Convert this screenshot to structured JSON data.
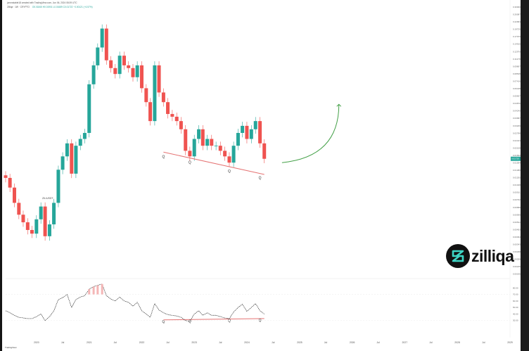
{
  "header": {
    "publisher": "jonnnstable18 created with TradingView.com, Jun 06, 2024 08:39 UTC",
    "symbol": "Zilliqa · 1W · CRYPTO",
    "ohlc": "O0.01845 H0.01901 L0.01689 C0.01722 −0.00121 (−6.57%)"
  },
  "logo": {
    "text": "zilliqa",
    "icon": "zilliqa-logo-mark"
  },
  "footer": {
    "brand": "TradingView"
  },
  "annotations": {
    "split_label": "ZIL/USDT"
  },
  "colors": {
    "up": "#26a69a",
    "down": "#ef5350",
    "trendline": "#e57373",
    "projection": "#43a047",
    "rsi_line": "#333333",
    "price_badge": "#26a69a"
  },
  "chart_data": [
    {
      "type": "candlestick",
      "title": "",
      "xlabel": "",
      "ylabel": "",
      "x_ticks": [
        "2020",
        "Jul",
        "2021",
        "Jul",
        "2022",
        "Jul",
        "2023",
        "Jul",
        "2024",
        "Jul",
        "2025",
        "Jul",
        "2026",
        "Jul",
        "2027",
        "Jul",
        "2028",
        "Jul",
        "2029"
      ],
      "ylim": [
        0.0019,
        0.3
      ],
      "y_scale": "log",
      "current_price": 0.0172,
      "x": [
        "2019-06",
        "2019-07",
        "2019-08",
        "2019-09",
        "2019-10",
        "2019-11",
        "2019-12",
        "2020-01",
        "2020-02",
        "2020-03",
        "2020-04",
        "2020-05",
        "2020-06",
        "2020-07",
        "2020-08",
        "2020-09",
        "2020-10",
        "2020-11",
        "2020-12",
        "2021-01",
        "2021-02",
        "2021-03",
        "2021-04",
        "2021-05",
        "2021-06",
        "2021-07",
        "2021-08",
        "2021-09",
        "2021-10",
        "2021-11",
        "2021-12",
        "2022-01",
        "2022-02",
        "2022-03",
        "2022-04",
        "2022-05",
        "2022-06",
        "2022-07",
        "2022-08",
        "2022-09",
        "2022-10",
        "2022-11",
        "2022-12",
        "2023-01",
        "2023-02",
        "2023-03",
        "2023-04",
        "2023-05",
        "2023-06",
        "2023-07",
        "2023-08",
        "2023-09",
        "2023-10",
        "2023-11",
        "2023-12",
        "2024-01",
        "2024-02",
        "2024-03",
        "2024-04",
        "2024-05"
      ],
      "close": [
        0.012,
        0.01,
        0.0075,
        0.006,
        0.0052,
        0.0045,
        0.0042,
        0.0055,
        0.007,
        0.004,
        0.005,
        0.0075,
        0.014,
        0.018,
        0.023,
        0.013,
        0.022,
        0.025,
        0.028,
        0.07,
        0.1,
        0.14,
        0.2,
        0.11,
        0.095,
        0.085,
        0.12,
        0.1,
        0.095,
        0.08,
        0.1,
        0.065,
        0.05,
        0.035,
        0.1,
        0.06,
        0.05,
        0.04,
        0.038,
        0.035,
        0.03,
        0.02,
        0.018,
        0.025,
        0.03,
        0.022,
        0.025,
        0.022,
        0.022,
        0.02,
        0.018,
        0.016,
        0.022,
        0.028,
        0.032,
        0.025,
        0.03,
        0.035,
        0.023,
        0.0172
      ],
      "rsi": {
        "ylim": [
          20,
          90
        ],
        "values": [
          45,
          42,
          38,
          35,
          34,
          33,
          33,
          36,
          40,
          30,
          36,
          45,
          62,
          65,
          70,
          50,
          62,
          66,
          68,
          78,
          82,
          84,
          86,
          68,
          63,
          60,
          66,
          60,
          58,
          52,
          58,
          45,
          40,
          35,
          56,
          46,
          42,
          39,
          38,
          37,
          35,
          30,
          29,
          40,
          45,
          38,
          42,
          38,
          38,
          36,
          34,
          33,
          43,
          50,
          55,
          44,
          50,
          56,
          45,
          40
        ]
      },
      "trendline_marks": [
        "Q",
        "Q",
        "Q",
        "Q"
      ],
      "projection": {
        "from": "2024-09",
        "to": "2025-10",
        "y_start": 0.016,
        "y_end": 0.048
      }
    }
  ]
}
